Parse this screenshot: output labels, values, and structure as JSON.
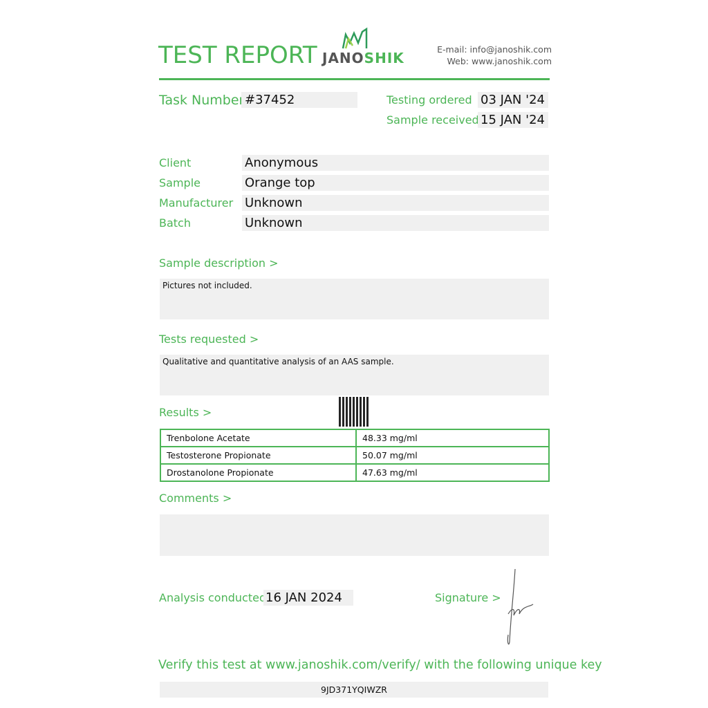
{
  "header": {
    "title": "TEST REPORT",
    "logo_text_dark": "JANO",
    "logo_text_green": "SHIK",
    "email_label": "E-mail:",
    "email": "info@janoshik.com",
    "web_label": "Web:",
    "web": "www.janoshik.com"
  },
  "task": {
    "label": "Task Number",
    "value": "#37452"
  },
  "dates": {
    "ordered_label": "Testing ordered  >",
    "ordered": "03 JAN '24",
    "received_label": "Sample received >",
    "received": "15 JAN '24"
  },
  "info": [
    {
      "label": "Client",
      "value": "Anonymous"
    },
    {
      "label": "Sample",
      "value": "Orange top"
    },
    {
      "label": "Manufacturer",
      "value": "Unknown"
    },
    {
      "label": "Batch",
      "value": "Unknown"
    }
  ],
  "description": {
    "label": "Sample description >",
    "text": "Pictures not included."
  },
  "tests": {
    "label": "Tests requested >",
    "text": "Qualitative and quantitative analysis of an AAS sample."
  },
  "results": {
    "label": "Results >",
    "rows": [
      {
        "compound": "Trenbolone Acetate",
        "amount": "48.33 mg/ml"
      },
      {
        "compound": "Testosterone Propionate",
        "amount": "50.07 mg/ml"
      },
      {
        "compound": "Drostanolone Propionate",
        "amount": "47.63 mg/ml"
      }
    ]
  },
  "comments": {
    "label": "Comments >",
    "text": ""
  },
  "analysis": {
    "label": "Analysis conducted >",
    "date": "16 JAN 2024"
  },
  "signature": {
    "label": "Signature >"
  },
  "verify": {
    "text": "Verify this test at www.janoshik.com/verify/ with the following unique key",
    "key": "9JD371YQIWZR"
  },
  "colors": {
    "accent": "#4cb556",
    "box": "#f0f0f0"
  }
}
